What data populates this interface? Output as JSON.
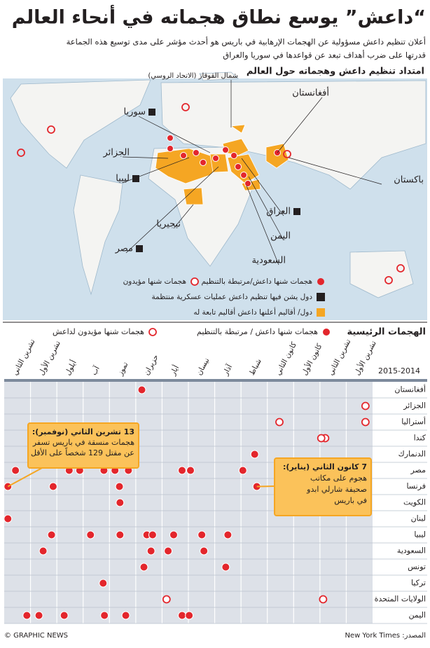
{
  "header": {
    "title": "“داعش” يوسع نطاق هجماته في أنحاء العالم",
    "subtitle": [
      "أعلان تنظيم داعش مسؤولية عن الهجمات الإرهابية في باريس هو أحدث مؤشر على مدى توسيع هذه الجماعة",
      "قدرتها على ضرب أهداف تبعد عن قواعدها في سوريا والعراق"
    ]
  },
  "map": {
    "title": "امتداد تنظيم داعش وهجماته حول العالم",
    "labels": [
      "أفغانستان",
      "سوريا",
      "الجزائر",
      "ليبيا",
      "نيجيريا",
      "مصر",
      "السعودية",
      "اليمن",
      "العراق",
      "باكستان",
      "شمال القوقاز (الاتحاد الروسي)"
    ],
    "legend": [
      {
        "name": "هجمات شنها داعش/مرتبطة بالتنظيم",
        "style": "filled",
        "color": "#e3262c"
      },
      {
        "name": "هجمات شنها مؤيدون",
        "style": "ring",
        "color": "#e3262c"
      },
      {
        "name": "دول يشن فيها تنظيم داعش عمليات عسكرية منتظمة",
        "style": "square",
        "color": "#231f20"
      },
      {
        "name": "دول/ أقاليم أعلنها داعش أقاليم تابعة له",
        "style": "square",
        "color": "#f5a623"
      }
    ]
  },
  "chart_data": {
    "type": "dot-timeline",
    "title": "الهجمات الرئيسية",
    "period": "2015-2014",
    "categories": [
      "تشرين الأول",
      "تشرين الثاني",
      "كانون الأول",
      "كانون الثاني",
      "شباط",
      "آذار",
      "نيسان",
      "أيار",
      "حزيران",
      "تموز",
      "آب",
      "أيلول",
      "تشرين الأول",
      "تشرين الثاني"
    ],
    "xlim": [
      0,
      14
    ],
    "x_direction": "right-to-left",
    "legend": [
      {
        "name": "هجمات شنها داعش / مرتبطة بالتنظيم",
        "color": "#e3262c",
        "style": "filled"
      },
      {
        "name": "هجمات شنها مؤيدون لداعش",
        "color": "#e3262c",
        "style": "ring"
      }
    ],
    "rows": [
      {
        "name": "أفغانستان",
        "affiliated": [
          8.77
        ],
        "supporters": []
      },
      {
        "name": "الجزائر",
        "affiliated": [],
        "supporters": [
          0.27
        ]
      },
      {
        "name": "أستراليا",
        "affiliated": [],
        "supporters": [
          3.54,
          0.27
        ]
      },
      {
        "name": "كندا",
        "affiliated": [],
        "supporters": [
          1.8,
          1.95
        ]
      },
      {
        "name": "الدنمارك",
        "affiliated": [
          4.48
        ],
        "supporters": []
      },
      {
        "name": "مصر",
        "affiliated": [
          13.57,
          11.53,
          11.13,
          10.21,
          9.79,
          9.28,
          7.24,
          6.92,
          4.93
        ],
        "supporters": []
      },
      {
        "name": "فرنسا",
        "affiliated": [
          13.86,
          12.14,
          9.62,
          4.4
        ],
        "supporters": []
      },
      {
        "name": "الكويت",
        "affiliated": [
          9.6
        ],
        "supporters": []
      },
      {
        "name": "لبنان",
        "affiliated": [
          13.86
        ],
        "supporters": []
      },
      {
        "name": "ليبيا",
        "affiliated": [
          12.2,
          10.72,
          9.6,
          8.58,
          8.36,
          7.56,
          6.49,
          5.5
        ],
        "supporters": []
      },
      {
        "name": "السعودية",
        "affiliated": [
          12.52,
          8.42,
          7.77,
          6.41
        ],
        "supporters": []
      },
      {
        "name": "تونس",
        "affiliated": [
          8.69,
          5.58
        ],
        "supporters": []
      },
      {
        "name": "تركيا",
        "affiliated": [
          10.24
        ],
        "supporters": []
      },
      {
        "name": "الولايات المتحدة",
        "affiliated": [],
        "supporters": [
          7.83,
          1.88
        ]
      },
      {
        "name": "اليمن",
        "affiliated": [
          13.14,
          12.68,
          11.72,
          10.19,
          9.38,
          7.24,
          6.97
        ],
        "supporters": []
      }
    ],
    "annotations": [
      {
        "lines": [
          "13 تشرين الثاني (نوفمبر):",
          "هجمات منسقة في باريس تسفر",
          "عن مقتل 129 شخصاً على الأقل"
        ]
      },
      {
        "lines": [
          "7 كانون الثاني (يناير):",
          "هجوم على مكاتب",
          "صحيفة شارلي ابدو",
          "في باريس"
        ]
      }
    ]
  },
  "footer": {
    "credit": "© GRAPHIC NEWS",
    "source": "المصدر: New York Times"
  }
}
